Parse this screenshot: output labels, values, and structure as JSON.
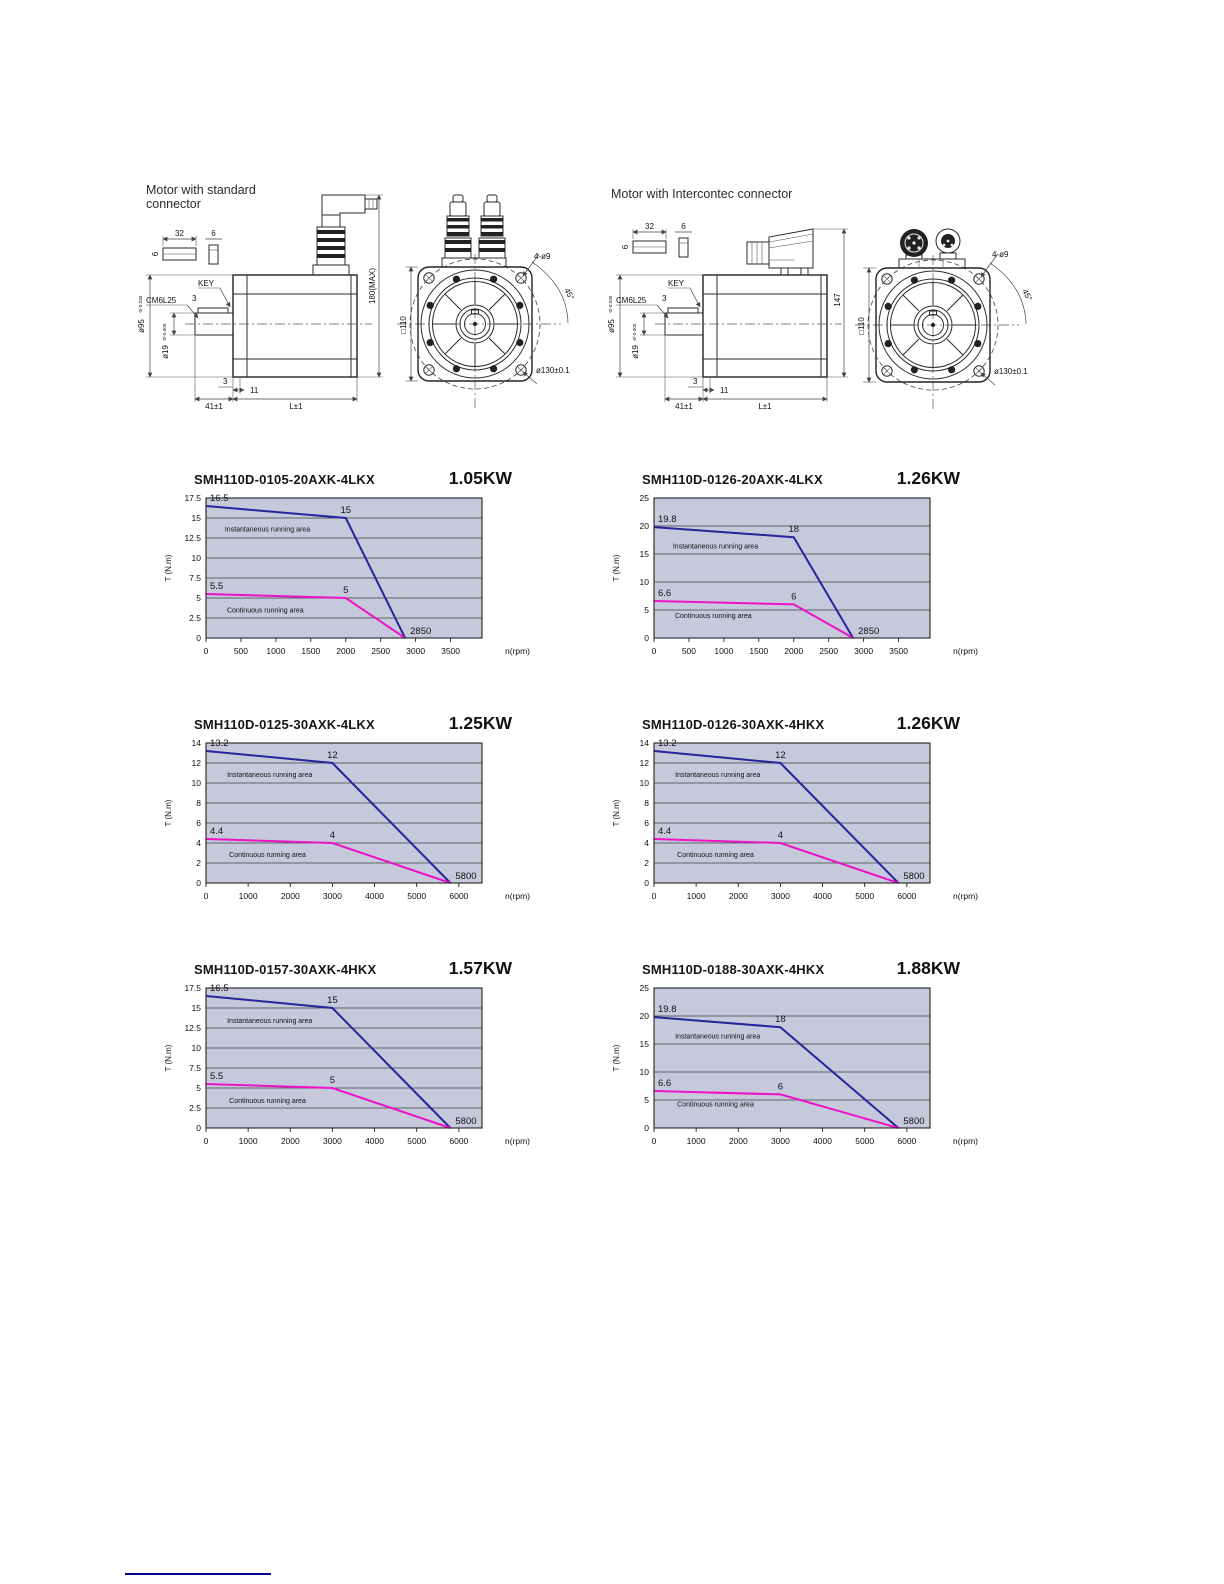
{
  "page": {
    "footer_rule_color": "#00008b"
  },
  "drawings": {
    "left": {
      "title_line1": "Motor with standard",
      "title_line2": "connector",
      "labels": {
        "key_width": "32",
        "key_thickness": "6",
        "key_height": "6",
        "key": "KEY",
        "shaft_thread": "CM6L25",
        "key_offset": "3",
        "d95": "ø95",
        "d95_tol": "0/-0.035",
        "d19": "ø19",
        "d19_tol": "0/-0.005",
        "total_height": "180(MAX)",
        "flange_step": "3",
        "pilot_len": "11",
        "shaft_len": "41±1",
        "body_len": "L±1",
        "square": "□110",
        "holes": "4-ø9",
        "angle": "45°",
        "bolt_circle": "ø130±0.1"
      }
    },
    "right": {
      "title_line1": "Motor with Intercontec connector",
      "labels": {
        "key_width": "32",
        "key_thickness": "6",
        "key_height": "6",
        "key": "KEY",
        "shaft_thread": "CM6L25",
        "key_offset": "3",
        "d95": "ø95",
        "d95_tol": "0/-0.035",
        "d19": "ø19",
        "d19_tol": "0/-0.005",
        "total_height": "147",
        "flange_step": "3",
        "pilot_len": "11",
        "shaft_len": "41±1",
        "body_len": "L±1",
        "square": "□110",
        "holes": "4-ø9",
        "angle": "45°",
        "bolt_circle": "ø130±0.1"
      }
    }
  },
  "chart_style": {
    "plot_bg": "#c5c9db",
    "grid": "#3f3f3f",
    "instantaneous_color": "#26269c",
    "continuous_color": "#ee12c6"
  },
  "chart_data": [
    {
      "type": "line",
      "title": "SMH110D-0105-20AXK-4LKX",
      "power": "1.05KW",
      "ylabel": "T (N.m)",
      "xlabel": "n(rpm)",
      "ymax": 17.5,
      "xmax": 3950,
      "yticks": [
        0,
        2.5,
        5,
        7.5,
        10,
        12.5,
        15,
        17.5
      ],
      "xticks": [
        0,
        500,
        1000,
        1500,
        2000,
        2500,
        3000,
        3500
      ],
      "series": [
        {
          "kind": "instantaneous",
          "name": "Instantaneous running area",
          "color": "#26269c",
          "points": [
            [
              0,
              16.5
            ],
            [
              2000,
              15
            ],
            [
              2850,
              0
            ]
          ],
          "point_labels": [
            "16.5",
            "15",
            "2850"
          ],
          "area_label": "Instantaneous running area",
          "area_label_pos": [
            270,
            13.3
          ]
        },
        {
          "kind": "continuous",
          "name": "Continuous running area",
          "color": "#ee12c6",
          "points": [
            [
              0,
              5.5
            ],
            [
              2000,
              5
            ],
            [
              2850,
              0
            ]
          ],
          "point_labels": [
            "5.5",
            "5",
            null
          ],
          "area_label": "Continuous running area",
          "area_label_pos": [
            300,
            3.2
          ]
        }
      ]
    },
    {
      "type": "line",
      "title": "SMH110D-0126-20AXK-4LKX",
      "power": "1.26KW",
      "ylabel": "T (N.m)",
      "xlabel": "n(rpm)",
      "ymax": 25,
      "xmax": 3950,
      "yticks": [
        0,
        5,
        10,
        15,
        20,
        25
      ],
      "xticks": [
        0,
        500,
        1000,
        1500,
        2000,
        2500,
        3000,
        3500
      ],
      "series": [
        {
          "kind": "instantaneous",
          "name": "Instantaneous running area",
          "color": "#26269c",
          "points": [
            [
              0,
              19.8
            ],
            [
              2000,
              18
            ],
            [
              2850,
              0
            ]
          ],
          "point_labels": [
            "19.8",
            "18",
            "2850"
          ],
          "area_label": "Instantaneous running area",
          "area_label_pos": [
            270,
            16.0
          ]
        },
        {
          "kind": "continuous",
          "name": "Continuous running area",
          "color": "#ee12c6",
          "points": [
            [
              0,
              6.6
            ],
            [
              2000,
              6
            ],
            [
              2850,
              0
            ]
          ],
          "point_labels": [
            "6.6",
            "6",
            null
          ],
          "area_label": "Continuous running area",
          "area_label_pos": [
            300,
            3.6
          ]
        }
      ]
    },
    {
      "type": "line",
      "title": "SMH110D-0125-30AXK-4LKX",
      "power": "1.25KW",
      "ylabel": "T (N.m)",
      "xlabel": "n(rpm)",
      "ymax": 14,
      "xmax": 6550,
      "yticks": [
        0,
        2,
        4,
        6,
        8,
        10,
        12,
        14
      ],
      "xticks": [
        0,
        1000,
        2000,
        3000,
        4000,
        5000,
        6000
      ],
      "series": [
        {
          "kind": "instantaneous",
          "name": "Instantaneous running area",
          "color": "#26269c",
          "points": [
            [
              0,
              13.2
            ],
            [
              3000,
              12
            ],
            [
              5800,
              0
            ]
          ],
          "point_labels": [
            "13.2",
            "12",
            "5800"
          ],
          "area_label": "Instantaneous running area",
          "area_label_pos": [
            500,
            10.6
          ]
        },
        {
          "kind": "continuous",
          "name": "Continuous running area",
          "color": "#ee12c6",
          "points": [
            [
              0,
              4.4
            ],
            [
              3000,
              4
            ],
            [
              5800,
              0
            ]
          ],
          "point_labels": [
            "4.4",
            "4",
            null
          ],
          "area_label": "Continuous running area",
          "area_label_pos": [
            550,
            2.6
          ]
        }
      ]
    },
    {
      "type": "line",
      "title": "SMH110D-0126-30AXK-4HKX",
      "power": "1.26KW",
      "ylabel": "T (N.m)",
      "xlabel": "n(rpm)",
      "ymax": 14,
      "xmax": 6550,
      "yticks": [
        0,
        2,
        4,
        6,
        8,
        10,
        12,
        14
      ],
      "xticks": [
        0,
        1000,
        2000,
        3000,
        4000,
        5000,
        6000
      ],
      "series": [
        {
          "kind": "instantaneous",
          "name": "Instantaneous running area",
          "color": "#26269c",
          "points": [
            [
              0,
              13.2
            ],
            [
              3000,
              12
            ],
            [
              5800,
              0
            ]
          ],
          "point_labels": [
            "13.2",
            "12",
            "5800"
          ],
          "area_label": "Instantaneous running area",
          "area_label_pos": [
            500,
            10.6
          ]
        },
        {
          "kind": "continuous",
          "name": "Continuous running area",
          "color": "#ee12c6",
          "points": [
            [
              0,
              4.4
            ],
            [
              3000,
              4
            ],
            [
              5800,
              0
            ]
          ],
          "point_labels": [
            "4.4",
            "4",
            null
          ],
          "area_label": "Continuous running area",
          "area_label_pos": [
            550,
            2.6
          ]
        }
      ]
    },
    {
      "type": "line",
      "title": "SMH110D-0157-30AXK-4HKX",
      "power": "1.57KW",
      "ylabel": "T (N.m)",
      "xlabel": "n(rpm)",
      "ymax": 17.5,
      "xmax": 6550,
      "yticks": [
        0,
        2.5,
        5,
        7.5,
        10,
        12.5,
        15,
        17.5
      ],
      "xticks": [
        0,
        1000,
        2000,
        3000,
        4000,
        5000,
        6000
      ],
      "series": [
        {
          "kind": "instantaneous",
          "name": "Instantaneous running area",
          "color": "#26269c",
          "points": [
            [
              0,
              16.5
            ],
            [
              3000,
              15
            ],
            [
              5800,
              0
            ]
          ],
          "point_labels": [
            "16.5",
            "15",
            "5800"
          ],
          "area_label": "Instantaneous running area",
          "area_label_pos": [
            500,
            13.1
          ]
        },
        {
          "kind": "continuous",
          "name": "Continuous running area",
          "color": "#ee12c6",
          "points": [
            [
              0,
              5.5
            ],
            [
              3000,
              5
            ],
            [
              5800,
              0
            ]
          ],
          "point_labels": [
            "5.5",
            "5",
            null
          ],
          "area_label": "Continuous running area",
          "area_label_pos": [
            550,
            3.1
          ]
        }
      ]
    },
    {
      "type": "line",
      "title": "SMH110D-0188-30AXK-4HKX",
      "power": "1.88KW",
      "ylabel": "T (N.m)",
      "xlabel": "n(rpm)",
      "ymax": 25,
      "xmax": 6550,
      "yticks": [
        0,
        5,
        10,
        15,
        20,
        25
      ],
      "xticks": [
        0,
        1000,
        2000,
        3000,
        4000,
        5000,
        6000
      ],
      "series": [
        {
          "kind": "instantaneous",
          "name": "Instantaneous running area",
          "color": "#26269c",
          "points": [
            [
              0,
              19.8
            ],
            [
              3000,
              18
            ],
            [
              5800,
              0
            ]
          ],
          "point_labels": [
            "19.8",
            "18",
            "5800"
          ],
          "area_label": "Instantaneous running area",
          "area_label_pos": [
            500,
            16.0
          ]
        },
        {
          "kind": "continuous",
          "name": "Continuous running area",
          "color": "#ee12c6",
          "points": [
            [
              0,
              6.6
            ],
            [
              3000,
              6
            ],
            [
              5800,
              0
            ]
          ],
          "point_labels": [
            "6.6",
            "6",
            null
          ],
          "area_label": "Continuous running area",
          "area_label_pos": [
            550,
            3.8
          ]
        }
      ]
    }
  ]
}
